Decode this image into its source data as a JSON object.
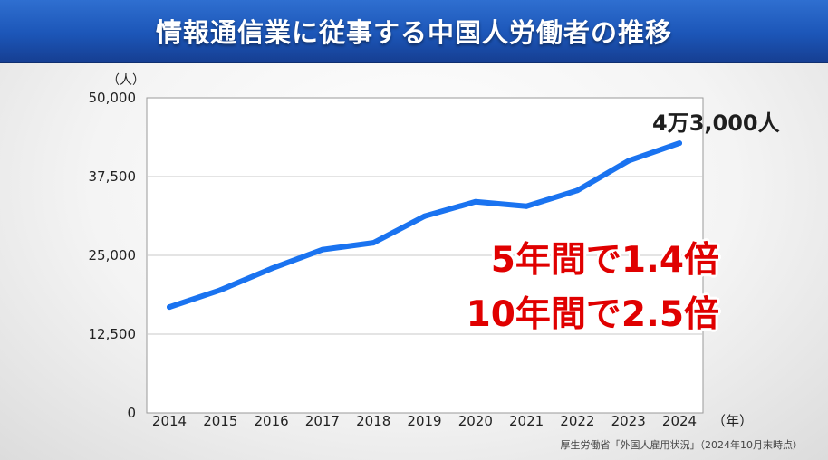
{
  "header": {
    "title": "情報通信業に従事する中国人労働者の推移"
  },
  "chart_data": {
    "type": "line",
    "title": "情報通信業に従事する中国人労働者の推移",
    "x": [
      "2014",
      "2015",
      "2016",
      "2017",
      "2018",
      "2019",
      "2020",
      "2021",
      "2022",
      "2023",
      "2024"
    ],
    "series": [
      {
        "values": [
          16800,
          19500,
          22900,
          25900,
          27000,
          31200,
          33500,
          32800,
          35300,
          40000,
          42800
        ]
      }
    ],
    "y_unit": "（人）",
    "x_unit": "（年）",
    "ylim": [
      0,
      50000
    ],
    "yticks": [
      "50,000",
      "37,500",
      "25,000",
      "12,500",
      "0"
    ],
    "ytick_values": [
      50000,
      37500,
      25000,
      12500,
      0
    ],
    "grid": true,
    "line_color": "#1a73f0",
    "end_label": "4万3,000人",
    "annotations": [
      "5年間で1.4倍",
      "10年間で2.5倍"
    ],
    "annotation_color": "#e00000"
  },
  "source": "厚生労働省「外国人雇用状況」（2024年10月末時点）"
}
